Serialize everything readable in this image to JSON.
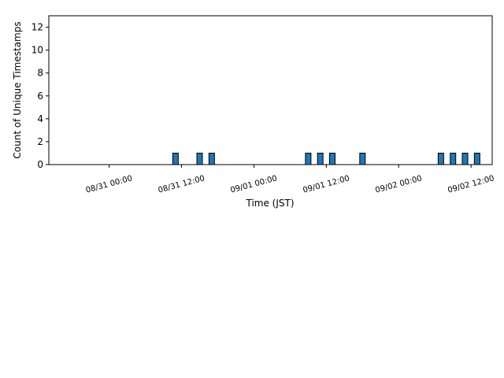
{
  "chart_data": {
    "type": "bar",
    "xlabel": "Time (JST)",
    "ylabel": "Count of Unique Timestamps",
    "x_ticks": [
      "08/31 00:00",
      "08/31 12:00",
      "09/01 00:00",
      "09/01 12:00",
      "09/02 00:00",
      "09/02 12:00"
    ],
    "y_ticks": [
      0,
      2,
      4,
      6,
      8,
      10,
      12
    ],
    "ylim": [
      0,
      13
    ],
    "xlim": [
      "2024-08-30 14:00",
      "2024-09-02 15:30"
    ],
    "bar_color": "#1f77b4",
    "edge_color": "#000000",
    "bars": [
      {
        "time": "2024-08-31 11:00",
        "value": 1
      },
      {
        "time": "2024-08-31 15:00",
        "value": 1
      },
      {
        "time": "2024-08-31 17:00",
        "value": 1
      },
      {
        "time": "2024-09-01 09:00",
        "value": 1
      },
      {
        "time": "2024-09-01 11:00",
        "value": 1
      },
      {
        "time": "2024-09-01 13:00",
        "value": 1
      },
      {
        "time": "2024-09-01 18:00",
        "value": 1
      },
      {
        "time": "2024-09-02 07:00",
        "value": 1
      },
      {
        "time": "2024-09-02 09:00",
        "value": 1
      },
      {
        "time": "2024-09-02 11:00",
        "value": 1
      },
      {
        "time": "2024-09-02 13:00",
        "value": 1
      }
    ]
  }
}
